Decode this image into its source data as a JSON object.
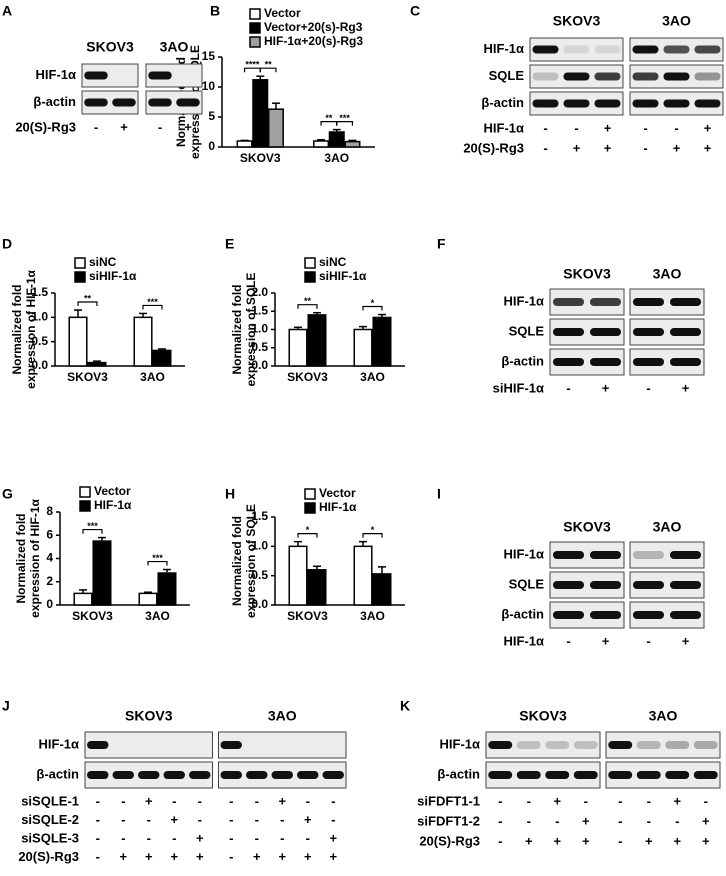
{
  "chart_data": [
    {
      "type": "bar",
      "panel": "B",
      "ylabel": [
        "Normalized fold",
        "expression of SQLE"
      ],
      "categories": [
        "SKOV3",
        "3AO"
      ],
      "series": [
        {
          "name": "Vector",
          "color": "#ffffff",
          "values": [
            1.0,
            1.0
          ],
          "errors": [
            0.1,
            0.2
          ]
        },
        {
          "name": "Vector+20(s)-Rg3",
          "color": "#000000",
          "values": [
            11.2,
            2.5
          ],
          "errors": [
            0.6,
            0.4
          ]
        },
        {
          "name": "HIF-1α+20(s)-Rg3",
          "color": "#a0a0a0",
          "values": [
            6.3,
            0.9
          ],
          "errors": [
            1.0,
            0.2
          ]
        }
      ],
      "annotations": [
        {
          "text": "****",
          "category": 0,
          "from": 0,
          "to": 1
        },
        {
          "text": "**",
          "category": 0,
          "from": 1,
          "to": 2
        },
        {
          "text": "**",
          "category": 1,
          "from": 0,
          "to": 1
        },
        {
          "text": "***",
          "category": 1,
          "from": 1,
          "to": 2
        }
      ],
      "ylim": [
        0,
        15
      ],
      "yticks": [
        0,
        5,
        10,
        15
      ]
    },
    {
      "type": "bar",
      "panel": "D",
      "ylabel": [
        "Normalized fold",
        "expression of HIF-1α"
      ],
      "categories": [
        "SKOV3",
        "3AO"
      ],
      "series": [
        {
          "name": "siNC",
          "color": "#ffffff",
          "values": [
            1.0,
            1.0
          ],
          "errors": [
            0.15,
            0.08
          ]
        },
        {
          "name": "siHIF-1α",
          "color": "#000000",
          "values": [
            0.07,
            0.32
          ],
          "errors": [
            0.03,
            0.03
          ]
        }
      ],
      "annotations": [
        {
          "text": "**",
          "category": 0,
          "from": 0,
          "to": 1
        },
        {
          "text": "***",
          "category": 1,
          "from": 0,
          "to": 1
        }
      ],
      "ylim": [
        0,
        1.5
      ],
      "yticks": [
        {
          "value": 0,
          "label": "0.0"
        },
        0.5,
        {
          "value": 1,
          "label": "1.0"
        },
        1.5
      ]
    },
    {
      "type": "bar",
      "panel": "E",
      "ylabel": [
        "Normalized fold",
        "expression of SQLE"
      ],
      "categories": [
        "SKOV3",
        "3AO"
      ],
      "series": [
        {
          "name": "siNC",
          "color": "#ffffff",
          "values": [
            1.0,
            1.0
          ],
          "errors": [
            0.06,
            0.08
          ]
        },
        {
          "name": "siHIF-1α",
          "color": "#000000",
          "values": [
            1.4,
            1.33
          ],
          "errors": [
            0.06,
            0.08
          ]
        }
      ],
      "annotations": [
        {
          "text": "**",
          "category": 0,
          "from": 0,
          "to": 1
        },
        {
          "text": "*",
          "category": 1,
          "from": 0,
          "to": 1
        }
      ],
      "ylim": [
        0,
        2
      ],
      "yticks": [
        {
          "value": 0,
          "label": "0.0"
        },
        0.5,
        {
          "value": 1,
          "label": "1.0"
        },
        1.5,
        {
          "value": 2,
          "label": "2.0"
        }
      ]
    },
    {
      "type": "bar",
      "panel": "G",
      "ylabel": [
        "Normalized fold",
        "expression of HIF-1α"
      ],
      "categories": [
        "SKOV3",
        "3AO"
      ],
      "series": [
        {
          "name": "Vector",
          "color": "#ffffff",
          "values": [
            1.0,
            1.0
          ],
          "errors": [
            0.3,
            0.1
          ]
        },
        {
          "name": "HIF-1α",
          "color": "#000000",
          "values": [
            5.5,
            2.75
          ],
          "errors": [
            0.3,
            0.3
          ]
        }
      ],
      "annotations": [
        {
          "text": "***",
          "category": 0,
          "from": 0,
          "to": 1
        },
        {
          "text": "***",
          "category": 1,
          "from": 0,
          "to": 1
        }
      ],
      "ylim": [
        0,
        8
      ],
      "yticks": [
        0,
        2,
        4,
        6,
        8
      ]
    },
    {
      "type": "bar",
      "panel": "H",
      "ylabel": [
        "Normalized fold",
        "expression of SQLE"
      ],
      "categories": [
        "SKOV3",
        "3AO"
      ],
      "series": [
        {
          "name": "Vector",
          "color": "#ffffff",
          "values": [
            1.0,
            1.0
          ],
          "errors": [
            0.08,
            0.08
          ]
        },
        {
          "name": "HIF-1α",
          "color": "#000000",
          "values": [
            0.6,
            0.53
          ],
          "errors": [
            0.06,
            0.12
          ]
        }
      ],
      "annotations": [
        {
          "text": "*",
          "category": 0,
          "from": 0,
          "to": 1
        },
        {
          "text": "*",
          "category": 1,
          "from": 0,
          "to": 1
        }
      ],
      "ylim": [
        0,
        1.5
      ],
      "yticks": [
        {
          "value": 0,
          "label": "0.0"
        },
        0.5,
        {
          "value": 1,
          "label": "1.0"
        },
        1.5
      ]
    }
  ],
  "blots": [
    {
      "panel": "A",
      "cells": [
        "SKOV3",
        "3AO"
      ],
      "rows": [
        "HIF-1α",
        "β-actin"
      ],
      "conditions": [
        {
          "label": "20(S)-Rg3",
          "signs": [
            "-",
            "+",
            "-",
            "+"
          ]
        }
      ]
    },
    {
      "panel": "C",
      "cells": [
        "SKOV3",
        "3AO"
      ],
      "rows": [
        "HIF-1α",
        "SQLE",
        "β-actin"
      ],
      "conditions": [
        {
          "label": "HIF-1α",
          "signs": [
            "-",
            "-",
            "+",
            "-",
            "-",
            "+"
          ]
        },
        {
          "label": "20(S)-Rg3",
          "signs": [
            "-",
            "+",
            "+",
            "-",
            "+",
            "+"
          ]
        }
      ]
    },
    {
      "panel": "F",
      "cells": [
        "SKOV3",
        "3AO"
      ],
      "rows": [
        "HIF-1α",
        "SQLE",
        "β-actin"
      ],
      "conditions": [
        {
          "label": "siHIF-1α",
          "signs": [
            "-",
            "+",
            "-",
            "+"
          ]
        }
      ]
    },
    {
      "panel": "I",
      "cells": [
        "SKOV3",
        "3AO"
      ],
      "rows": [
        "HIF-1α",
        "SQLE",
        "β-actin"
      ],
      "conditions": [
        {
          "label": "HIF-1α",
          "signs": [
            "-",
            "+",
            "-",
            "+"
          ]
        }
      ]
    },
    {
      "panel": "J",
      "cells": [
        "SKOV3",
        "3AO"
      ],
      "rows": [
        "HIF-1α",
        "β-actin"
      ],
      "conditions": [
        {
          "label": "siSQLE-1",
          "signs": [
            "-",
            "-",
            "+",
            "-",
            "-",
            "-",
            "-",
            "+",
            "-",
            "-"
          ]
        },
        {
          "label": "siSQLE-2",
          "signs": [
            "-",
            "-",
            "-",
            "+",
            "-",
            "-",
            "-",
            "-",
            "+",
            "-"
          ]
        },
        {
          "label": "siSQLE-3",
          "signs": [
            "-",
            "-",
            "-",
            "-",
            "+",
            "-",
            "-",
            "-",
            "-",
            "+"
          ]
        },
        {
          "label": "20(S)-Rg3",
          "signs": [
            "-",
            "+",
            "+",
            "+",
            "+",
            "-",
            "+",
            "+",
            "+",
            "+"
          ]
        }
      ]
    },
    {
      "panel": "K",
      "cells": [
        "SKOV3",
        "3AO"
      ],
      "rows": [
        "HIF-1α",
        "β-actin"
      ],
      "conditions": [
        {
          "label": "siFDFT1-1",
          "signs": [
            "-",
            "-",
            "+",
            "-",
            "-",
            "-",
            "+",
            "-"
          ]
        },
        {
          "label": "siFDFT1-2",
          "signs": [
            "-",
            "-",
            "-",
            "+",
            "-",
            "-",
            "-",
            "+"
          ]
        },
        {
          "label": "20(S)-Rg3",
          "signs": [
            "-",
            "+",
            "+",
            "+",
            "-",
            "+",
            "+",
            "+"
          ]
        }
      ]
    }
  ]
}
